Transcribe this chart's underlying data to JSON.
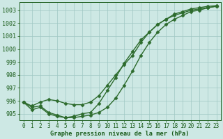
{
  "xlabel": "Graphe pression niveau de la mer (hPa)",
  "x": [
    0,
    1,
    2,
    3,
    4,
    5,
    6,
    7,
    8,
    9,
    10,
    11,
    12,
    13,
    14,
    15,
    16,
    17,
    18,
    19,
    20,
    21,
    22,
    23
  ],
  "series1": [
    995.9,
    995.5,
    995.6,
    995.1,
    994.9,
    994.7,
    994.8,
    995.0,
    995.1,
    995.8,
    996.8,
    997.8,
    998.9,
    999.8,
    1000.7,
    1001.3,
    1001.9,
    1002.3,
    1002.6,
    1002.8,
    1003.0,
    1003.1,
    1003.2,
    1003.3
  ],
  "series2": [
    995.9,
    995.3,
    995.5,
    995.0,
    994.8,
    994.7,
    994.7,
    994.8,
    994.9,
    995.1,
    995.5,
    996.2,
    997.2,
    998.3,
    999.5,
    1000.5,
    1001.3,
    1001.9,
    1002.3,
    1002.6,
    1002.9,
    1003.0,
    1003.2,
    1003.3
  ],
  "series3": [
    995.9,
    995.6,
    995.9,
    996.1,
    996.0,
    995.8,
    995.7,
    995.7,
    995.9,
    996.4,
    997.2,
    998.0,
    998.8,
    999.5,
    1000.5,
    1001.3,
    1001.9,
    1002.3,
    1002.7,
    1002.9,
    1003.1,
    1003.2,
    1003.3,
    1003.35
  ],
  "ylim_min": 994.5,
  "ylim_max": 1003.6,
  "yticks": [
    995,
    996,
    997,
    998,
    999,
    1000,
    1001,
    1002,
    1003
  ],
  "line_color": "#2d6b2d",
  "bg_color": "#cde8e4",
  "grid_color": "#a0c8c4",
  "text_color": "#1a5c1a",
  "markersize": 2.5,
  "linewidth": 1.0,
  "tick_fontsize": 5.5,
  "xlabel_fontsize": 6.2
}
